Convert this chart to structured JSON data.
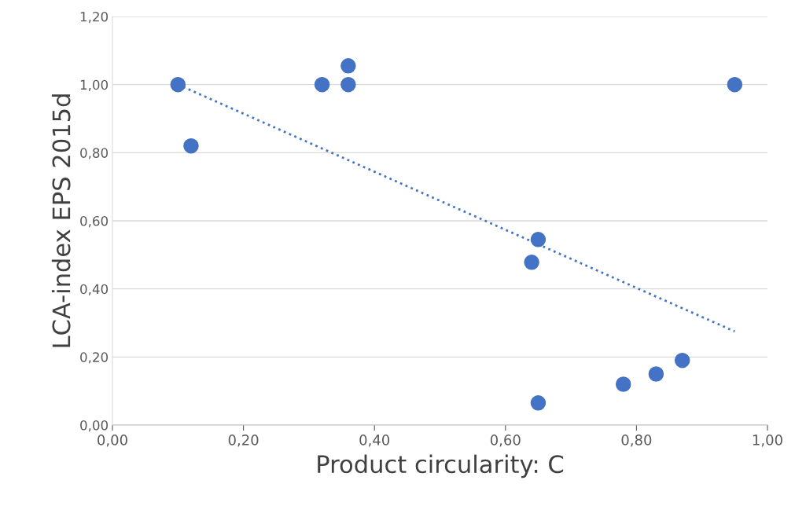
{
  "chart_data": {
    "type": "scatter",
    "xlabel": "Product circularity: C",
    "ylabel": "LCA-index EPS 2015d",
    "series": [
      {
        "color": "#4472c4",
        "x": [
          0.1,
          0.12,
          0.32,
          0.36,
          0.36,
          0.95,
          0.65,
          0.64,
          0.65,
          0.78,
          0.83,
          0.87
        ],
        "values": [
          1.0,
          0.82,
          1.0,
          1.055,
          1.0,
          1.0,
          0.545,
          0.478,
          0.065,
          0.12,
          0.15,
          0.19
        ],
        "marker": "circle"
      },
      {
        "type": "line",
        "color": "#4472c4",
        "x": [
          0.1,
          0.95
        ],
        "values": [
          1.0,
          0.275
        ],
        "line_style": "dotted",
        "marker": "none"
      }
    ],
    "xlim": [
      0,
      1
    ],
    "ylim": [
      0,
      1.2
    ],
    "xticks": [
      {
        "value": 0,
        "label": "0,00"
      },
      {
        "value": 0.2,
        "label": "0,20"
      },
      {
        "value": 0.4,
        "label": "0,40"
      },
      {
        "value": 0.6,
        "label": "0,60"
      },
      {
        "value": 0.8,
        "label": "0,80"
      },
      {
        "value": 1,
        "label": "1,00"
      }
    ],
    "yticks": [
      {
        "value": 0,
        "label": "0,00"
      },
      {
        "value": 0.2,
        "label": "0,20"
      },
      {
        "value": 0.4,
        "label": "0,40"
      },
      {
        "value": 0.6,
        "label": "0,60"
      },
      {
        "value": 0.8,
        "label": "0,80"
      },
      {
        "value": 1,
        "label": "1,00"
      },
      {
        "value": 1.2,
        "label": "1,20"
      }
    ],
    "grid": "y"
  }
}
